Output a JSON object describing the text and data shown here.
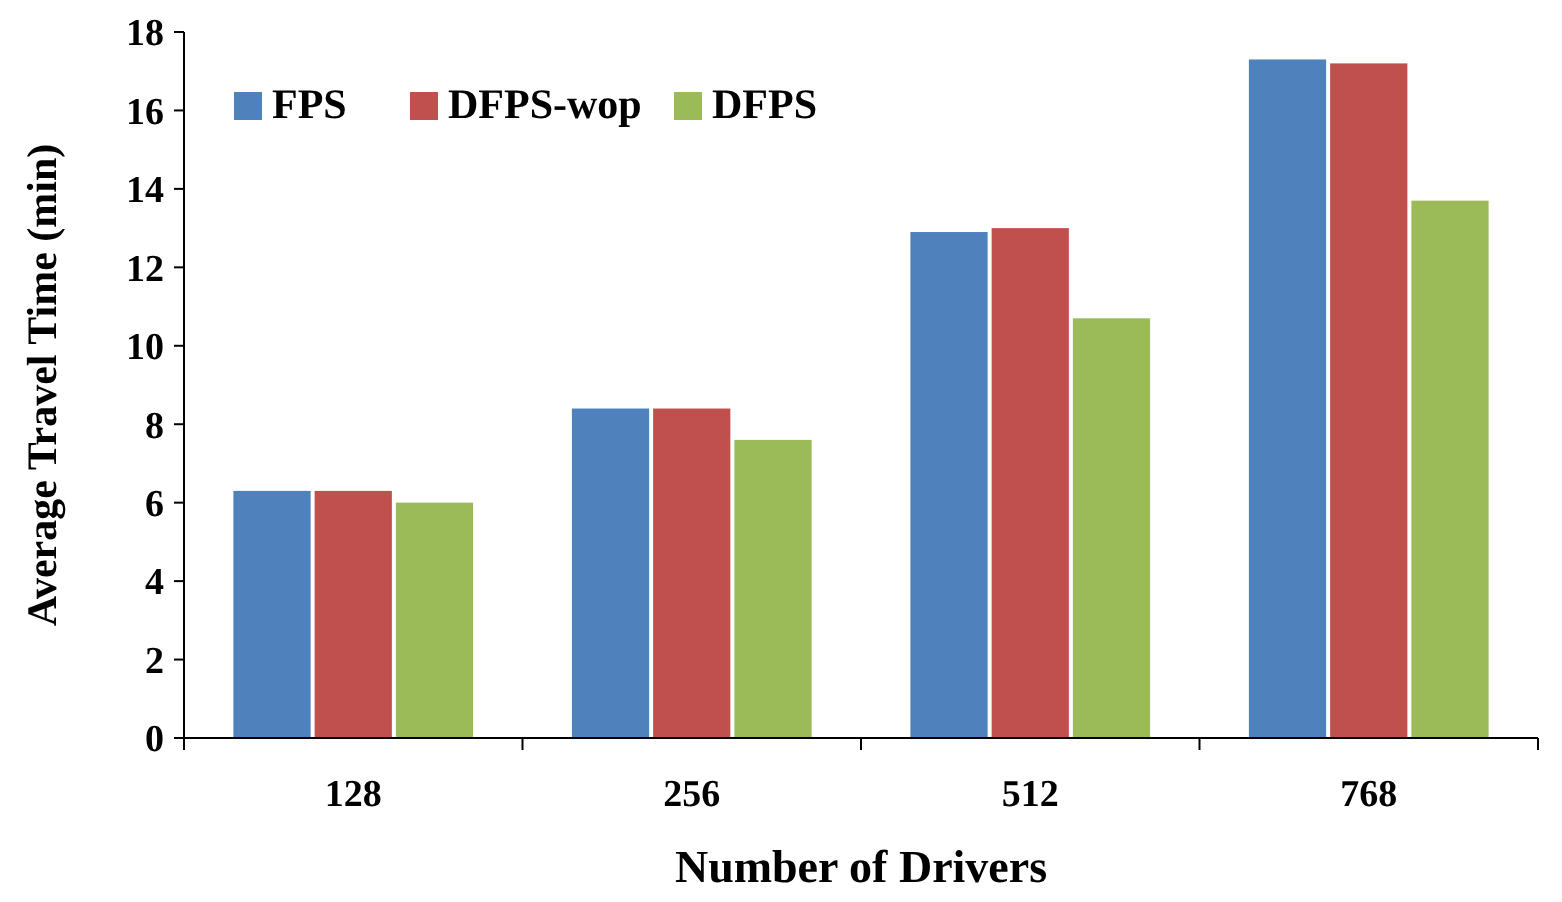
{
  "chart_data": {
    "type": "bar",
    "xlabel": "Number of Drivers",
    "ylabel": "Average Travel Time (min)",
    "categories": [
      "128",
      "256",
      "512",
      "768"
    ],
    "series": [
      {
        "name": "FPS",
        "color": "#4f81bd",
        "values": [
          6.3,
          8.4,
          12.9,
          17.3
        ]
      },
      {
        "name": "DFPS-wop",
        "color": "#c0504d",
        "values": [
          6.3,
          8.4,
          13.0,
          17.2
        ]
      },
      {
        "name": "DFPS",
        "color": "#9bbb59",
        "values": [
          6.0,
          7.6,
          10.7,
          13.7
        ]
      }
    ],
    "ylim": [
      0,
      18
    ],
    "yticks": [
      0,
      2,
      4,
      6,
      8,
      10,
      12,
      14,
      16,
      18
    ],
    "grid": false,
    "legend": "top left"
  }
}
